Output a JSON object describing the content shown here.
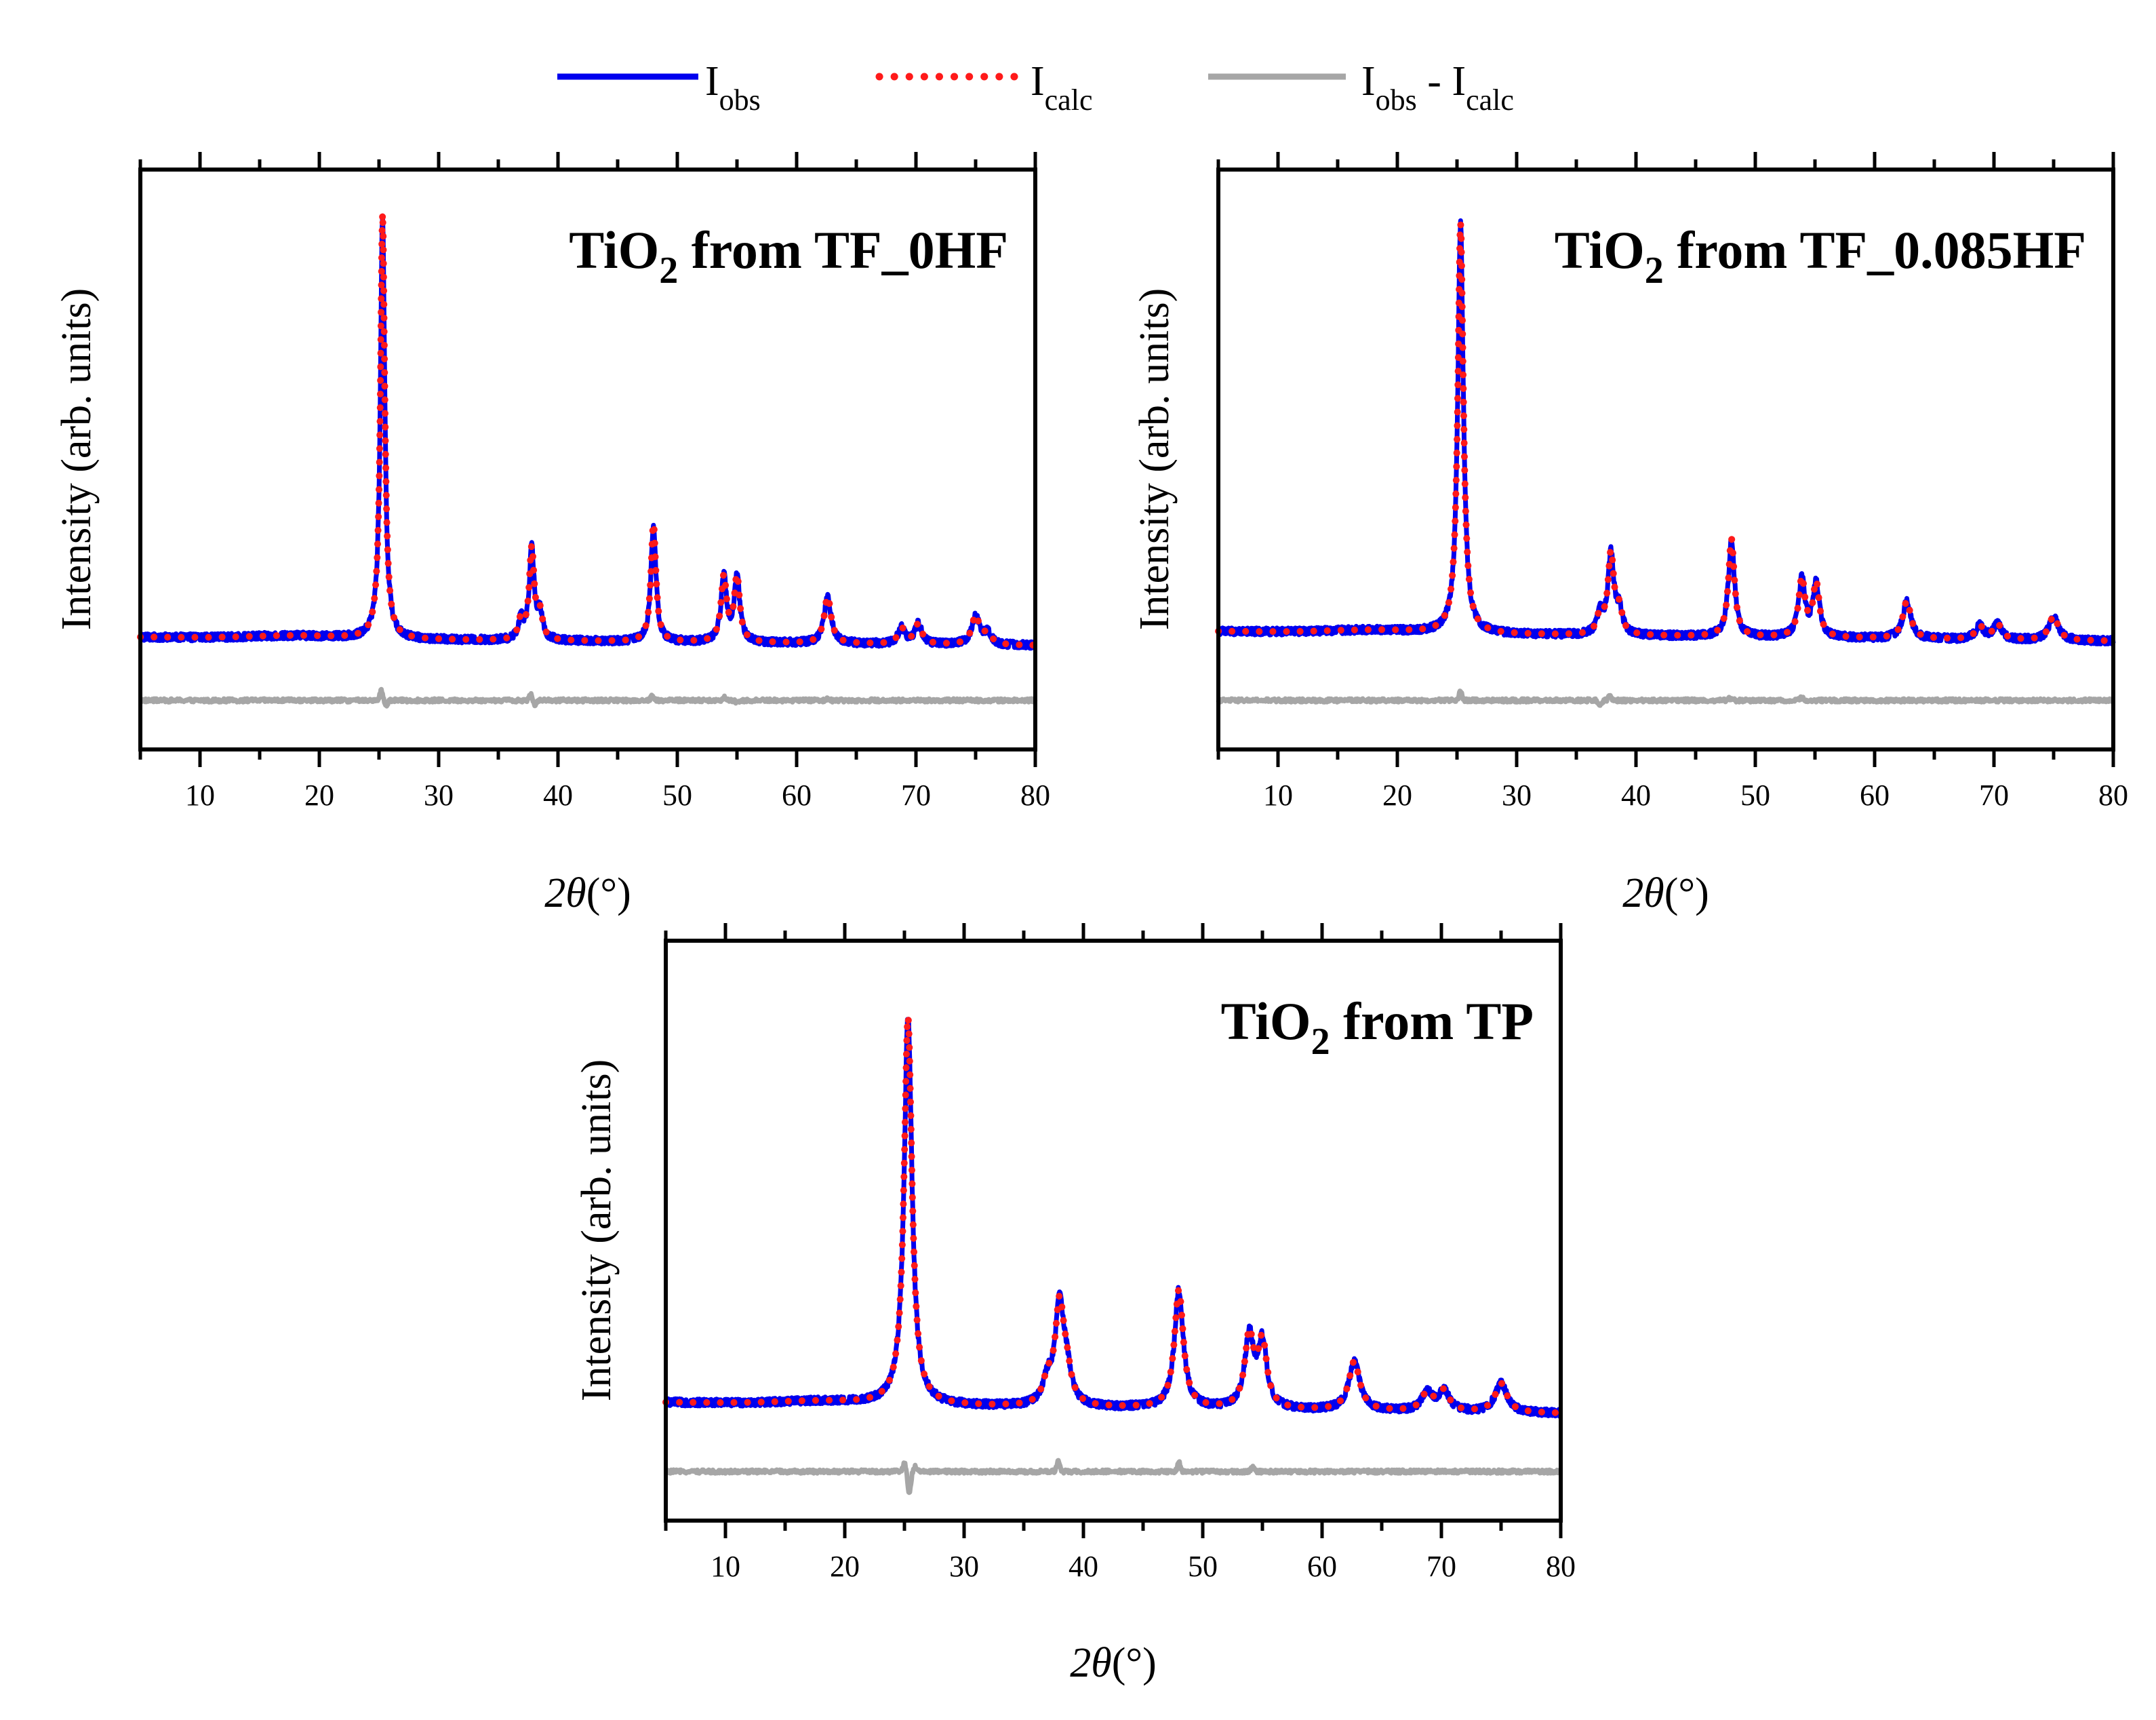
{
  "legend": {
    "obs": {
      "base": "I",
      "sub": "obs"
    },
    "calc": {
      "base": "I",
      "sub": "calc"
    },
    "diff": {
      "base1": "I",
      "sub1": "obs",
      "sep": " - ",
      "base2": "I",
      "sub2": "calc"
    }
  },
  "colors": {
    "obs": "#0000ee",
    "calc": "#ff1a1a",
    "diff": "#a6a6a6"
  },
  "chart_data": [
    {
      "type": "line",
      "title": {
        "pre": "TiO",
        "sub": "2",
        "post": " from TF_0HF"
      },
      "xlabel": {
        "symbol": "2θ",
        "unit": "(°)"
      },
      "ylabel": "Intensity (arb. units)",
      "xlim": [
        5,
        80
      ],
      "ylim": [
        -0.2,
        1.1
      ],
      "xticks": [
        10,
        20,
        30,
        40,
        50,
        60,
        70,
        80
      ],
      "yticks": [],
      "baseline": [
        0.052,
        0.033
      ],
      "diff_offset": -0.09,
      "peaks": [
        {
          "x": 25.3,
          "h": 0.955,
          "w": 0.22
        },
        {
          "x": 36.9,
          "h": 0.045,
          "w": 0.25
        },
        {
          "x": 37.8,
          "h": 0.205,
          "w": 0.25
        },
        {
          "x": 38.5,
          "h": 0.055,
          "w": 0.25
        },
        {
          "x": 48.0,
          "h": 0.265,
          "w": 0.25
        },
        {
          "x": 53.9,
          "h": 0.145,
          "w": 0.28
        },
        {
          "x": 55.0,
          "h": 0.145,
          "w": 0.28
        },
        {
          "x": 62.6,
          "h": 0.105,
          "w": 0.35
        },
        {
          "x": 68.8,
          "h": 0.035,
          "w": 0.35
        },
        {
          "x": 70.2,
          "h": 0.045,
          "w": 0.35
        },
        {
          "x": 75.0,
          "h": 0.065,
          "w": 0.38
        },
        {
          "x": 76.0,
          "h": 0.025,
          "w": 0.38
        }
      ],
      "diff_features": [
        [
          25.2,
          0.022
        ],
        [
          25.6,
          -0.012
        ],
        [
          37.7,
          0.015
        ],
        [
          38.1,
          -0.01
        ],
        [
          47.9,
          0.01
        ],
        [
          53.9,
          0.007
        ],
        [
          55.0,
          -0.005
        ],
        [
          62.6,
          0.004
        ]
      ]
    },
    {
      "type": "line",
      "title": {
        "pre": "TiO",
        "sub": "2",
        "post": " from TF_0.085HF"
      },
      "xlabel": {
        "symbol": "2θ",
        "unit": "(°)"
      },
      "ylabel": "Intensity (arb. units)",
      "xlim": [
        5,
        80
      ],
      "ylim": [
        -0.2,
        1.1
      ],
      "xticks": [
        10,
        20,
        30,
        40,
        50,
        60,
        70,
        80
      ],
      "yticks": [],
      "baseline": [
        0.065,
        0.043
      ],
      "diff_offset": -0.09,
      "peaks": [
        {
          "x": 25.3,
          "h": 0.92,
          "w": 0.28
        },
        {
          "x": 37.0,
          "h": 0.045,
          "w": 0.3
        },
        {
          "x": 37.9,
          "h": 0.18,
          "w": 0.3
        },
        {
          "x": 38.6,
          "h": 0.05,
          "w": 0.3
        },
        {
          "x": 48.0,
          "h": 0.22,
          "w": 0.3
        },
        {
          "x": 53.9,
          "h": 0.13,
          "w": 0.32
        },
        {
          "x": 55.1,
          "h": 0.12,
          "w": 0.32
        },
        {
          "x": 62.7,
          "h": 0.085,
          "w": 0.4
        },
        {
          "x": 68.8,
          "h": 0.03,
          "w": 0.4
        },
        {
          "x": 70.3,
          "h": 0.035,
          "w": 0.4
        },
        {
          "x": 75.0,
          "h": 0.055,
          "w": 0.45
        }
      ],
      "diff_features": [
        [
          25.3,
          0.02
        ],
        [
          37.0,
          -0.012
        ],
        [
          37.8,
          0.008
        ],
        [
          47.9,
          0.005
        ],
        [
          53.9,
          0.006
        ]
      ]
    },
    {
      "type": "line",
      "title": {
        "pre": "TiO",
        "sub": "2",
        "post": " from TP"
      },
      "xlabel": {
        "symbol": "2θ",
        "unit": "(°)"
      },
      "ylabel": "Intensity (arb. units)",
      "xlim": [
        5,
        80
      ],
      "ylim": [
        -0.2,
        1.1
      ],
      "xticks": [
        10,
        20,
        30,
        40,
        50,
        60,
        70,
        80
      ],
      "yticks": [],
      "baseline": [
        0.065,
        0.04
      ],
      "diff_offset": -0.09,
      "peaks": [
        {
          "x": 25.3,
          "h": 0.87,
          "w": 0.4
        },
        {
          "x": 37.0,
          "h": 0.05,
          "w": 0.45
        },
        {
          "x": 38.0,
          "h": 0.22,
          "w": 0.45
        },
        {
          "x": 38.6,
          "h": 0.06,
          "w": 0.45
        },
        {
          "x": 48.0,
          "h": 0.265,
          "w": 0.45
        },
        {
          "x": 53.9,
          "h": 0.16,
          "w": 0.45
        },
        {
          "x": 55.0,
          "h": 0.145,
          "w": 0.45
        },
        {
          "x": 62.7,
          "h": 0.11,
          "w": 0.55
        },
        {
          "x": 68.8,
          "h": 0.04,
          "w": 0.55
        },
        {
          "x": 70.2,
          "h": 0.045,
          "w": 0.55
        },
        {
          "x": 75.0,
          "h": 0.065,
          "w": 0.6
        }
      ],
      "diff_features": [
        [
          25.0,
          0.018
        ],
        [
          25.4,
          -0.05
        ],
        [
          25.9,
          0.012
        ],
        [
          37.9,
          0.025
        ],
        [
          48.0,
          0.02
        ],
        [
          54.2,
          0.01
        ]
      ]
    }
  ]
}
